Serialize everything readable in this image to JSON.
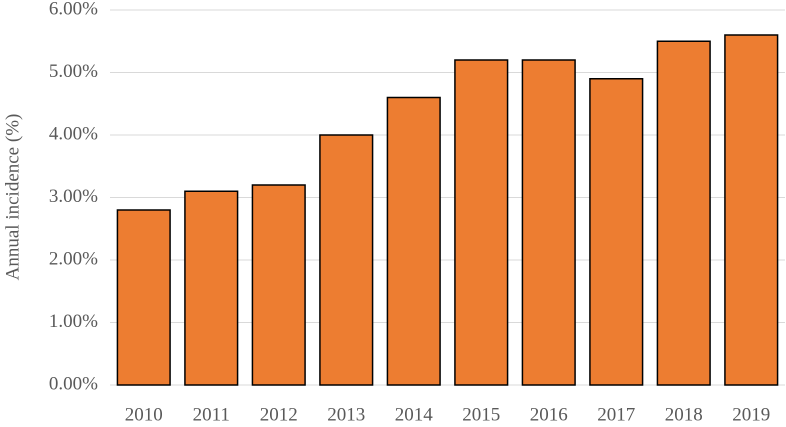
{
  "chart_data": {
    "type": "bar",
    "y_label": "Annual incidence (%)",
    "categories": [
      "2010",
      "2011",
      "2012",
      "2013",
      "2014",
      "2015",
      "2016",
      "2017",
      "2018",
      "2019"
    ],
    "values": [
      2.8,
      3.1,
      3.2,
      4.0,
      4.6,
      5.2,
      5.2,
      4.9,
      5.5,
      5.6
    ],
    "color": "#ed7d31",
    "ylim": [
      0,
      6
    ],
    "yticks": [
      {
        "value": 0,
        "label": "0.00%"
      },
      {
        "value": 1,
        "label": "1.00%"
      },
      {
        "value": 2,
        "label": "2.00%"
      },
      {
        "value": 3,
        "label": "3.00%"
      },
      {
        "value": 4,
        "label": "4.00%"
      },
      {
        "value": 5,
        "label": "5.00%"
      },
      {
        "value": 6,
        "label": "6.00%"
      }
    ],
    "grid": true
  }
}
